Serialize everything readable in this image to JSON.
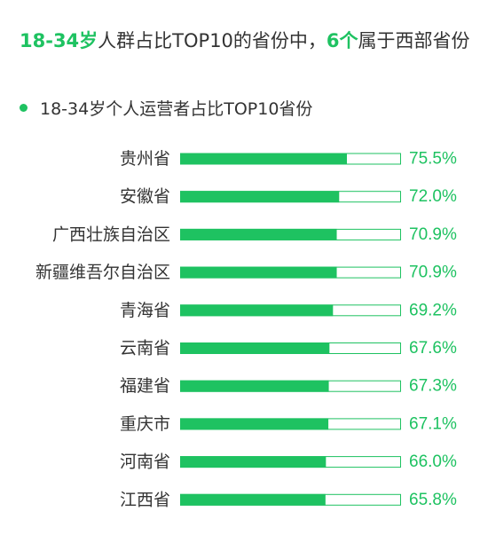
{
  "headline": {
    "part1": "18-34岁",
    "part2": "人群占比TOP10的省份中，",
    "part3": "6个",
    "part4": "属于西部省份"
  },
  "colors": {
    "accent": "#1ec261",
    "text": "#333333",
    "bar_border": "#1ec261"
  },
  "chart_data": {
    "type": "bar",
    "orientation": "horizontal",
    "title": "18-34岁个人运营者占比TOP10省份",
    "categories": [
      "贵州省",
      "安徽省",
      "广西壮族自治区",
      "新疆维吾尔自治区",
      "青海省",
      "云南省",
      "福建省",
      "重庆市",
      "河南省",
      "江西省"
    ],
    "values": [
      75.5,
      72.0,
      70.9,
      70.9,
      69.2,
      67.6,
      67.3,
      67.1,
      66.0,
      65.8
    ],
    "labels": [
      "75.5%",
      "72.0%",
      "70.9%",
      "70.9%",
      "69.2%",
      "67.6%",
      "67.3%",
      "67.1%",
      "66.0%",
      "65.8%"
    ],
    "unit": "%",
    "xlim": [
      0,
      100
    ],
    "grid": false,
    "legend": "none"
  }
}
